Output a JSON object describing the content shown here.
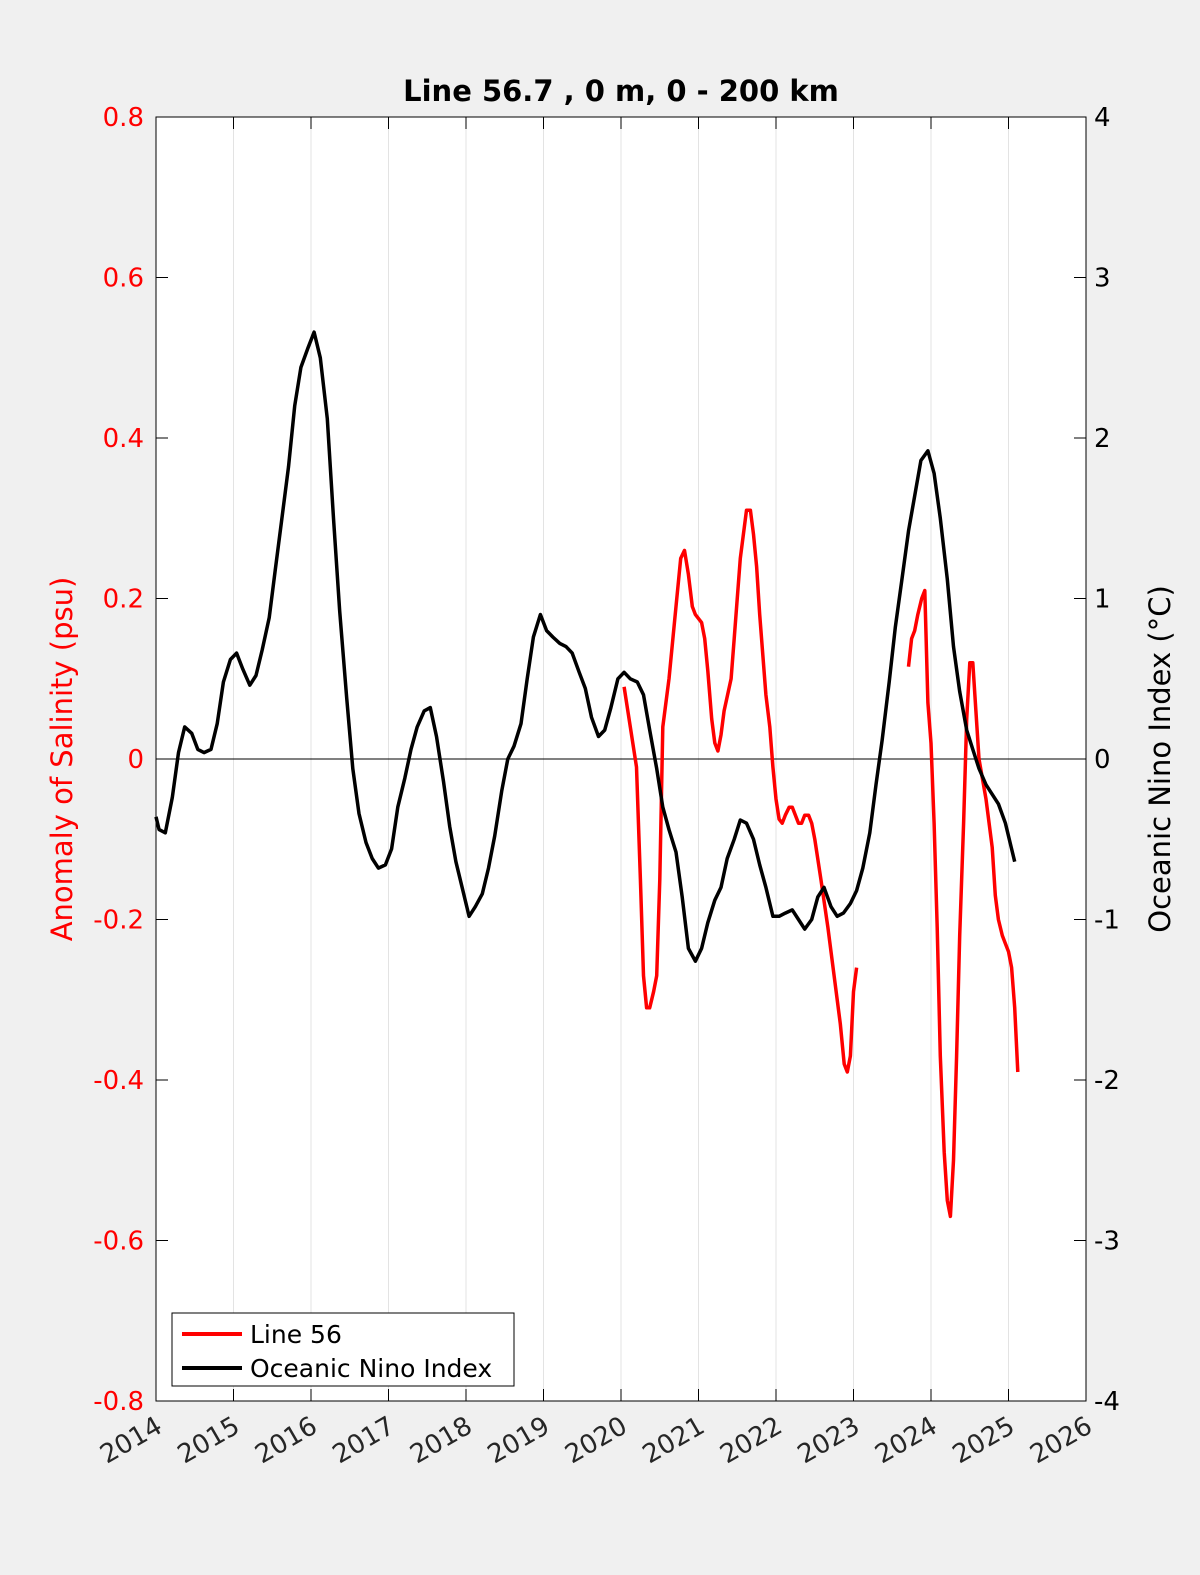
{
  "chart_data": {
    "type": "line",
    "title": "Line 56.7 , 0 m, 0 - 200 km",
    "xlabel": "",
    "ylabel_left": "Anomaly of Salinity (psu)",
    "ylabel_right": "Oceanic Nino Index (°C)",
    "xlim": [
      2014,
      2026
    ],
    "ylim_left": [
      -0.8,
      0.8
    ],
    "ylim_right": [
      -4,
      4
    ],
    "x_ticks": [
      "2014",
      "2015",
      "2016",
      "2017",
      "2018",
      "2019",
      "2020",
      "2021",
      "2022",
      "2023",
      "2024",
      "2025",
      "2026"
    ],
    "y_ticks_left": [
      "-0.8",
      "-0.6",
      "-0.4",
      "-0.2",
      "0",
      "0.2",
      "0.4",
      "0.6",
      "0.8"
    ],
    "y_ticks_right": [
      "-4",
      "-3",
      "-2",
      "-1",
      "0",
      "1",
      "2",
      "3",
      "4"
    ],
    "grid": "vertical",
    "legend_position": "bottom-left",
    "colors": {
      "line56": "#ff0000",
      "oni": "#000000",
      "left_axis": "#ff0000",
      "right_axis": "#000000"
    },
    "series": [
      {
        "name": "Line 56",
        "axis": "left",
        "segments": [
          [
            [
              2020.04,
              0.09
            ],
            [
              2020.12,
              0.04
            ],
            [
              2020.2,
              -0.01
            ],
            [
              2020.25,
              -0.15
            ],
            [
              2020.29,
              -0.27
            ],
            [
              2020.33,
              -0.31
            ],
            [
              2020.37,
              -0.31
            ],
            [
              2020.42,
              -0.29
            ],
            [
              2020.46,
              -0.27
            ],
            [
              2020.5,
              -0.15
            ],
            [
              2020.54,
              0.04
            ],
            [
              2020.62,
              0.1
            ],
            [
              2020.71,
              0.19
            ],
            [
              2020.77,
              0.25
            ],
            [
              2020.82,
              0.26
            ],
            [
              2020.87,
              0.23
            ],
            [
              2020.92,
              0.19
            ],
            [
              2020.96,
              0.18
            ],
            [
              2021.04,
              0.17
            ],
            [
              2021.08,
              0.15
            ],
            [
              2021.12,
              0.11
            ],
            [
              2021.17,
              0.05
            ],
            [
              2021.21,
              0.02
            ],
            [
              2021.25,
              0.01
            ],
            [
              2021.29,
              0.03
            ],
            [
              2021.33,
              0.06
            ],
            [
              2021.42,
              0.1
            ],
            [
              2021.46,
              0.15
            ],
            [
              2021.54,
              0.25
            ],
            [
              2021.62,
              0.31
            ],
            [
              2021.67,
              0.31
            ],
            [
              2021.71,
              0.28
            ],
            [
              2021.75,
              0.24
            ],
            [
              2021.79,
              0.18
            ],
            [
              2021.87,
              0.08
            ],
            [
              2021.92,
              0.04
            ],
            [
              2021.96,
              -0.01
            ],
            [
              2022.0,
              -0.05
            ],
            [
              2022.04,
              -0.075
            ],
            [
              2022.08,
              -0.08
            ],
            [
              2022.12,
              -0.07
            ],
            [
              2022.17,
              -0.06
            ],
            [
              2022.21,
              -0.06
            ],
            [
              2022.25,
              -0.07
            ],
            [
              2022.29,
              -0.08
            ],
            [
              2022.33,
              -0.08
            ],
            [
              2022.37,
              -0.07
            ],
            [
              2022.42,
              -0.07
            ],
            [
              2022.46,
              -0.08
            ],
            [
              2022.5,
              -0.1
            ],
            [
              2022.58,
              -0.15
            ],
            [
              2022.67,
              -0.21
            ],
            [
              2022.75,
              -0.27
            ],
            [
              2022.83,
              -0.33
            ],
            [
              2022.88,
              -0.38
            ],
            [
              2022.92,
              -0.39
            ],
            [
              2022.96,
              -0.37
            ],
            [
              2023.0,
              -0.29
            ],
            [
              2023.04,
              -0.26
            ]
          ],
          [
            [
              2023.71,
              0.115
            ],
            [
              2023.75,
              0.15
            ],
            [
              2023.79,
              0.16
            ],
            [
              2023.83,
              0.18
            ],
            [
              2023.88,
              0.2
            ],
            [
              2023.92,
              0.21
            ],
            [
              2023.96,
              0.07
            ],
            [
              2024.0,
              0.02
            ],
            [
              2024.04,
              -0.08
            ],
            [
              2024.08,
              -0.21
            ],
            [
              2024.12,
              -0.37
            ],
            [
              2024.17,
              -0.49
            ],
            [
              2024.21,
              -0.55
            ],
            [
              2024.25,
              -0.57
            ],
            [
              2024.29,
              -0.5
            ],
            [
              2024.33,
              -0.37
            ],
            [
              2024.37,
              -0.22
            ],
            [
              2024.42,
              -0.08
            ],
            [
              2024.46,
              0.05
            ],
            [
              2024.5,
              0.12
            ],
            [
              2024.54,
              0.12
            ],
            [
              2024.58,
              0.06
            ],
            [
              2024.62,
              0.0
            ],
            [
              2024.71,
              -0.05
            ],
            [
              2024.79,
              -0.11
            ],
            [
              2024.83,
              -0.17
            ],
            [
              2024.87,
              -0.2
            ],
            [
              2024.92,
              -0.22
            ],
            [
              2024.96,
              -0.23
            ],
            [
              2025.0,
              -0.24
            ],
            [
              2025.04,
              -0.26
            ],
            [
              2025.08,
              -0.31
            ],
            [
              2025.12,
              -0.39
            ]
          ]
        ]
      },
      {
        "name": "Oceanic Nino Index",
        "axis": "right",
        "segments": [
          [
            [
              2014.0,
              -0.36
            ],
            [
              2014.04,
              -0.44
            ],
            [
              2014.12,
              -0.46
            ],
            [
              2014.21,
              -0.24
            ],
            [
              2014.29,
              0.04
            ],
            [
              2014.37,
              0.2
            ],
            [
              2014.46,
              0.16
            ],
            [
              2014.54,
              0.06
            ],
            [
              2014.62,
              0.04
            ],
            [
              2014.71,
              0.06
            ],
            [
              2014.79,
              0.22
            ],
            [
              2014.87,
              0.48
            ],
            [
              2014.96,
              0.62
            ],
            [
              2015.04,
              0.66
            ],
            [
              2015.12,
              0.56
            ],
            [
              2015.21,
              0.46
            ],
            [
              2015.29,
              0.52
            ],
            [
              2015.37,
              0.68
            ],
            [
              2015.46,
              0.88
            ],
            [
              2015.54,
              1.18
            ],
            [
              2015.62,
              1.48
            ],
            [
              2015.71,
              1.82
            ],
            [
              2015.79,
              2.2
            ],
            [
              2015.87,
              2.44
            ],
            [
              2015.96,
              2.56
            ],
            [
              2016.04,
              2.66
            ],
            [
              2016.12,
              2.5
            ],
            [
              2016.21,
              2.12
            ],
            [
              2016.29,
              1.5
            ],
            [
              2016.37,
              0.92
            ],
            [
              2016.46,
              0.38
            ],
            [
              2016.54,
              -0.06
            ],
            [
              2016.62,
              -0.34
            ],
            [
              2016.71,
              -0.52
            ],
            [
              2016.79,
              -0.62
            ],
            [
              2016.87,
              -0.68
            ],
            [
              2016.96,
              -0.66
            ],
            [
              2017.04,
              -0.56
            ],
            [
              2017.12,
              -0.3
            ],
            [
              2017.21,
              -0.12
            ],
            [
              2017.29,
              0.06
            ],
            [
              2017.37,
              0.2
            ],
            [
              2017.46,
              0.3
            ],
            [
              2017.54,
              0.32
            ],
            [
              2017.62,
              0.14
            ],
            [
              2017.71,
              -0.14
            ],
            [
              2017.79,
              -0.42
            ],
            [
              2017.87,
              -0.64
            ],
            [
              2017.96,
              -0.82
            ],
            [
              2018.04,
              -0.98
            ],
            [
              2018.12,
              -0.92
            ],
            [
              2018.21,
              -0.84
            ],
            [
              2018.29,
              -0.68
            ],
            [
              2018.37,
              -0.48
            ],
            [
              2018.46,
              -0.2
            ],
            [
              2018.54,
              0.0
            ],
            [
              2018.62,
              0.08
            ],
            [
              2018.71,
              0.22
            ],
            [
              2018.79,
              0.5
            ],
            [
              2018.87,
              0.76
            ],
            [
              2018.96,
              0.9
            ],
            [
              2019.04,
              0.8
            ],
            [
              2019.12,
              0.76
            ],
            [
              2019.21,
              0.72
            ],
            [
              2019.29,
              0.7
            ],
            [
              2019.37,
              0.66
            ],
            [
              2019.46,
              0.54
            ],
            [
              2019.54,
              0.44
            ],
            [
              2019.62,
              0.26
            ],
            [
              2019.71,
              0.14
            ],
            [
              2019.79,
              0.18
            ],
            [
              2019.87,
              0.32
            ],
            [
              2019.96,
              0.5
            ],
            [
              2020.04,
              0.54
            ],
            [
              2020.12,
              0.5
            ],
            [
              2020.21,
              0.48
            ],
            [
              2020.29,
              0.4
            ],
            [
              2020.37,
              0.18
            ],
            [
              2020.46,
              -0.06
            ],
            [
              2020.54,
              -0.3
            ],
            [
              2020.62,
              -0.44
            ],
            [
              2020.71,
              -0.58
            ],
            [
              2020.79,
              -0.86
            ],
            [
              2020.87,
              -1.18
            ],
            [
              2020.96,
              -1.26
            ],
            [
              2021.04,
              -1.18
            ],
            [
              2021.12,
              -1.02
            ],
            [
              2021.21,
              -0.88
            ],
            [
              2021.29,
              -0.8
            ],
            [
              2021.37,
              -0.62
            ],
            [
              2021.46,
              -0.5
            ],
            [
              2021.54,
              -0.38
            ],
            [
              2021.62,
              -0.4
            ],
            [
              2021.71,
              -0.5
            ],
            [
              2021.79,
              -0.66
            ],
            [
              2021.87,
              -0.8
            ],
            [
              2021.96,
              -0.98
            ],
            [
              2022.04,
              -0.98
            ],
            [
              2022.12,
              -0.96
            ],
            [
              2022.21,
              -0.94
            ],
            [
              2022.29,
              -1.0
            ],
            [
              2022.37,
              -1.06
            ],
            [
              2022.46,
              -1.0
            ],
            [
              2022.54,
              -0.86
            ],
            [
              2022.62,
              -0.8
            ],
            [
              2022.71,
              -0.92
            ],
            [
              2022.79,
              -0.98
            ],
            [
              2022.87,
              -0.96
            ],
            [
              2022.96,
              -0.9
            ],
            [
              2023.04,
              -0.82
            ],
            [
              2023.12,
              -0.68
            ],
            [
              2023.21,
              -0.46
            ],
            [
              2023.29,
              -0.16
            ],
            [
              2023.37,
              0.12
            ],
            [
              2023.46,
              0.48
            ],
            [
              2023.54,
              0.82
            ],
            [
              2023.62,
              1.1
            ],
            [
              2023.71,
              1.42
            ],
            [
              2023.79,
              1.64
            ],
            [
              2023.87,
              1.86
            ],
            [
              2023.96,
              1.92
            ],
            [
              2024.04,
              1.78
            ],
            [
              2024.12,
              1.5
            ],
            [
              2024.21,
              1.12
            ],
            [
              2024.29,
              0.7
            ],
            [
              2024.37,
              0.42
            ],
            [
              2024.46,
              0.18
            ],
            [
              2024.54,
              0.06
            ],
            [
              2024.62,
              -0.06
            ],
            [
              2024.71,
              -0.16
            ],
            [
              2024.79,
              -0.22
            ],
            [
              2024.87,
              -0.28
            ],
            [
              2024.96,
              -0.4
            ],
            [
              2025.04,
              -0.56
            ],
            [
              2025.08,
              -0.64
            ]
          ]
        ]
      }
    ]
  }
}
